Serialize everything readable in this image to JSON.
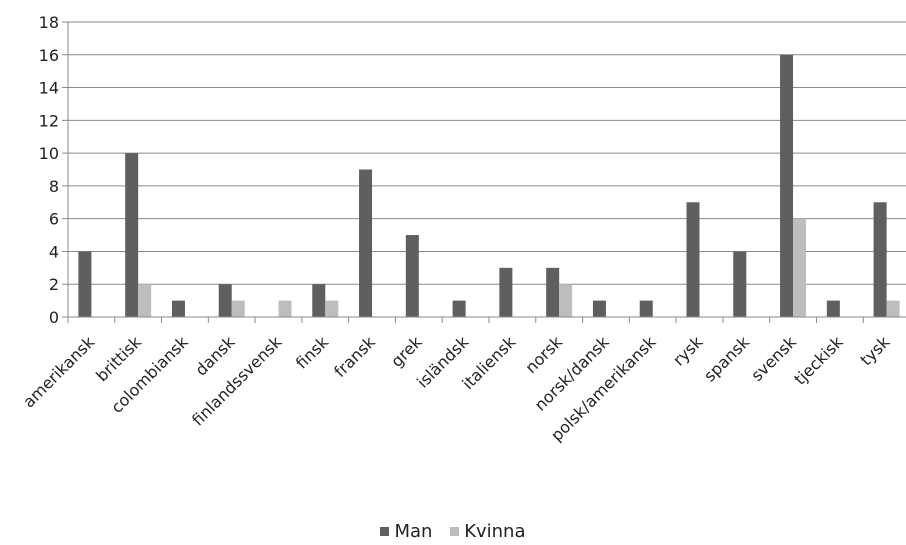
{
  "chart_data": {
    "type": "bar",
    "categories": [
      "amerikansk",
      "brittisk",
      "colombiansk",
      "dansk",
      "finlandssvensk",
      "finsk",
      "fransk",
      "grek",
      "isländsk",
      "italiensk",
      "norsk",
      "norsk/dansk",
      "polsk/amerikansk",
      "rysk",
      "spansk",
      "svensk",
      "tjeckisk",
      "tysk"
    ],
    "series": [
      {
        "name": "Man",
        "color": "#5f5f5f",
        "values": [
          4,
          10,
          1,
          2,
          0,
          2,
          9,
          5,
          1,
          3,
          3,
          1,
          1,
          7,
          4,
          16,
          1,
          7
        ]
      },
      {
        "name": "Kvinna",
        "color": "#bdbdbd",
        "values": [
          0,
          2,
          0,
          1,
          1,
          1,
          0,
          0,
          0,
          0,
          2,
          0,
          0,
          0,
          0,
          6,
          0,
          1
        ]
      }
    ],
    "ylim": [
      0,
      18
    ],
    "yticks": [
      "0",
      "2",
      "4",
      "6",
      "8",
      "10",
      "12",
      "14",
      "16",
      "18"
    ],
    "grid": true,
    "legend_position": "bottom"
  }
}
